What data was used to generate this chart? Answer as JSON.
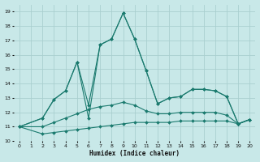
{
  "title": "",
  "xlabel": "Humidex (Indice chaleur)",
  "xlim": [
    -0.5,
    20.5
  ],
  "ylim": [
    10,
    19.5
  ],
  "yticks": [
    10,
    11,
    12,
    13,
    14,
    15,
    16,
    17,
    18,
    19
  ],
  "xticks": [
    0,
    1,
    2,
    3,
    4,
    5,
    6,
    7,
    8,
    9,
    10,
    11,
    12,
    13,
    14,
    15,
    16,
    17,
    18,
    19,
    20
  ],
  "bg_color": "#c8e8e8",
  "grid_color": "#aacfcf",
  "line_color": "#1a7a6e",
  "series": [
    {
      "x": [
        0,
        2,
        3,
        4,
        5,
        6,
        7,
        8,
        9,
        10,
        11,
        12,
        13,
        14,
        15,
        16,
        17,
        18,
        19,
        20
      ],
      "y": [
        11.0,
        11.6,
        12.9,
        13.5,
        15.5,
        11.6,
        16.7,
        17.1,
        18.9,
        17.1,
        14.9,
        12.6,
        13.0,
        13.1,
        13.6,
        13.6,
        13.5,
        13.1,
        11.2,
        11.5
      ]
    },
    {
      "x": [
        0,
        2,
        3,
        4,
        5,
        6,
        7,
        8,
        9,
        10,
        11,
        12,
        13,
        14,
        15,
        16,
        17,
        18,
        19,
        20
      ],
      "y": [
        11.0,
        11.6,
        12.9,
        13.5,
        15.5,
        12.5,
        16.7,
        17.1,
        18.9,
        17.1,
        14.9,
        12.6,
        13.0,
        13.1,
        13.6,
        13.6,
        13.5,
        13.1,
        11.2,
        11.5
      ]
    },
    {
      "x": [
        0,
        2,
        3,
        4,
        5,
        6,
        7,
        8,
        9,
        10,
        11,
        12,
        13,
        14,
        15,
        16,
        17,
        18,
        19,
        20
      ],
      "y": [
        11.0,
        11.0,
        11.3,
        11.6,
        11.9,
        12.2,
        12.4,
        12.5,
        12.7,
        12.5,
        12.1,
        11.9,
        11.9,
        12.0,
        12.0,
        12.0,
        12.0,
        11.8,
        11.2,
        11.5
      ]
    },
    {
      "x": [
        0,
        2,
        3,
        4,
        5,
        6,
        7,
        8,
        9,
        10,
        11,
        12,
        13,
        14,
        15,
        16,
        17,
        18,
        19,
        20
      ],
      "y": [
        11.0,
        10.5,
        10.6,
        10.7,
        10.8,
        10.9,
        11.0,
        11.1,
        11.2,
        11.3,
        11.3,
        11.3,
        11.3,
        11.4,
        11.4,
        11.4,
        11.4,
        11.4,
        11.2,
        11.5
      ]
    }
  ]
}
